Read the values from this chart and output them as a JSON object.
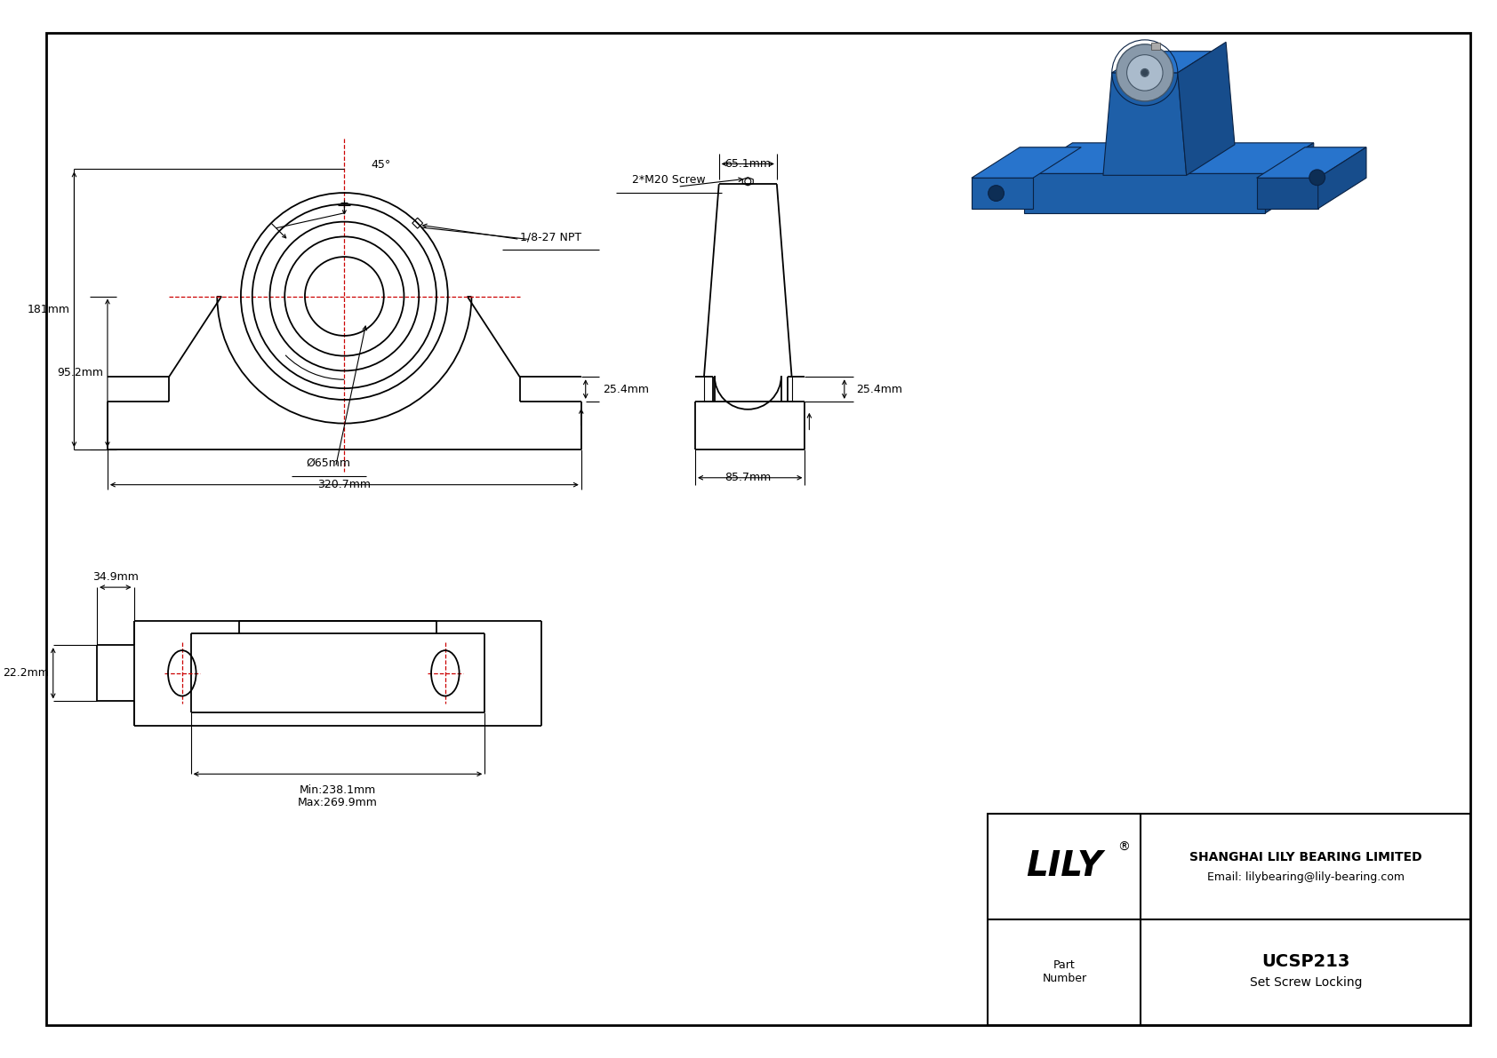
{
  "bg_color": "#ffffff",
  "line_color": "#000000",
  "red_line_color": "#cc0000",
  "dim_181": "181mm",
  "dim_952": "95.2mm",
  "dim_3207": "320.7mm",
  "dim_65": "Ø65mm",
  "dim_45": "45°",
  "dim_npt": "1/8-27 NPT",
  "dim_screw": "2*M20 Screw",
  "dim_651": "65.1mm",
  "dim_254": "25.4mm",
  "dim_857": "85.7mm",
  "dim_349": "34.9mm",
  "dim_222": "22.2mm",
  "dim_min": "Min:238.1mm",
  "dim_max": "Max:269.9mm",
  "title_company": "SHANGHAI LILY BEARING LIMITED",
  "title_email": "Email: lilybearing@lily-bearing.com",
  "part_label": "Part\nNumber",
  "part_number": "UCSP213",
  "part_type": "Set Screw Locking",
  "brand_registered": "®"
}
